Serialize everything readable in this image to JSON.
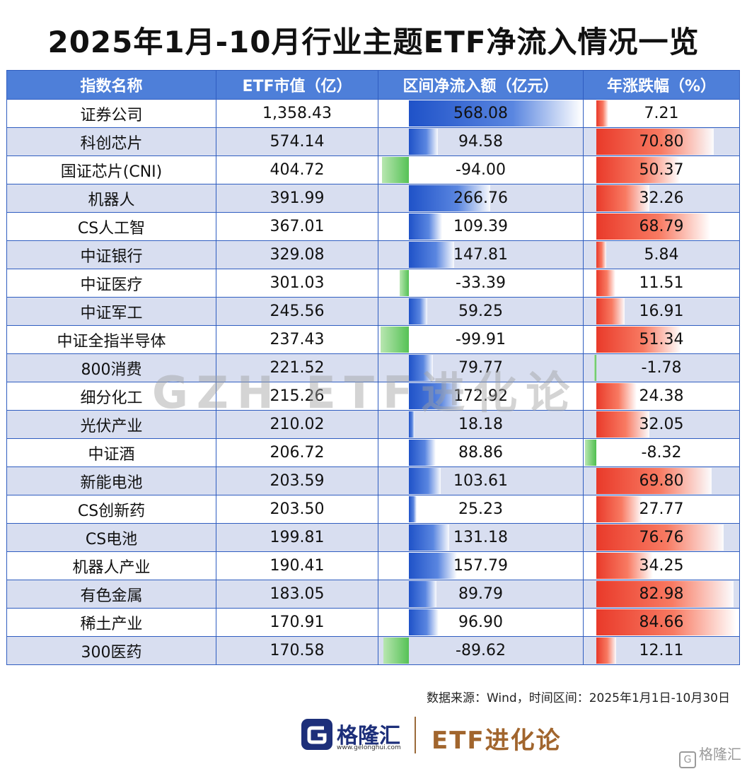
{
  "title": "2025年1月-10月行业主题ETF净流入情况一览",
  "headers": [
    "指数名称",
    "ETF市值（亿）",
    "区间净流入额（亿元）",
    "年涨跌幅（%）"
  ],
  "watermark": "GZH ETF进化论",
  "source": "数据来源：Wind，时间区间：2025年1月1日-10月30日",
  "footer": {
    "logo_name": "格隆汇",
    "logo_url": "www.gelonghui.com",
    "brand": "ETF进化论",
    "corner_mark": "格隆汇"
  },
  "colors": {
    "header_bg": "#4e7fd9",
    "inflow_bar": "#1f52c8",
    "outflow_bar": "#56c256",
    "gain_bar": "#e93a2a",
    "loss_bar": "#4fbf4f",
    "brand_color": "#a1652d"
  },
  "chart_data": {
    "type": "table",
    "title": "2025年1月-10月行业主题ETF净流入情况一览",
    "columns": [
      "指数名称",
      "ETF市值（亿）",
      "区间净流入额（亿元）",
      "年涨跌幅（%）"
    ],
    "rows": [
      {
        "name": "证券公司",
        "market_cap": "1,358.43",
        "net_inflow": 568.08,
        "change": 7.21
      },
      {
        "name": "科创芯片",
        "market_cap": "574.14",
        "net_inflow": 94.58,
        "change": 70.8
      },
      {
        "name": "国证芯片(CNI)",
        "market_cap": "404.72",
        "net_inflow": -94.0,
        "change": 50.37
      },
      {
        "name": "机器人",
        "market_cap": "391.99",
        "net_inflow": 266.76,
        "change": 32.26
      },
      {
        "name": "CS人工智",
        "market_cap": "367.01",
        "net_inflow": 109.39,
        "change": 68.79
      },
      {
        "name": "中证银行",
        "market_cap": "329.08",
        "net_inflow": 147.81,
        "change": 5.84
      },
      {
        "name": "中证医疗",
        "market_cap": "301.03",
        "net_inflow": -33.39,
        "change": 11.51
      },
      {
        "name": "中证军工",
        "market_cap": "245.56",
        "net_inflow": 59.25,
        "change": 16.91
      },
      {
        "name": "中证全指半导体",
        "market_cap": "237.43",
        "net_inflow": -99.91,
        "change": 51.34
      },
      {
        "name": "800消费",
        "market_cap": "221.52",
        "net_inflow": 79.77,
        "change": -1.78
      },
      {
        "name": "细分化工",
        "market_cap": "215.26",
        "net_inflow": 172.92,
        "change": 24.38
      },
      {
        "name": "光伏产业",
        "market_cap": "210.02",
        "net_inflow": 18.18,
        "change": 32.05
      },
      {
        "name": "中证酒",
        "market_cap": "206.72",
        "net_inflow": 88.86,
        "change": -8.32
      },
      {
        "name": "新能电池",
        "market_cap": "203.59",
        "net_inflow": 103.61,
        "change": 69.8
      },
      {
        "name": "CS创新药",
        "market_cap": "203.50",
        "net_inflow": 25.23,
        "change": 27.77
      },
      {
        "name": "CS电池",
        "market_cap": "199.81",
        "net_inflow": 131.18,
        "change": 76.76
      },
      {
        "name": "机器人产业",
        "market_cap": "190.41",
        "net_inflow": 157.79,
        "change": 34.25
      },
      {
        "name": "有色金属",
        "market_cap": "183.05",
        "net_inflow": 89.79,
        "change": 82.98
      },
      {
        "name": "稀土产业",
        "market_cap": "170.91",
        "net_inflow": 96.9,
        "change": 84.66
      },
      {
        "name": "300医药",
        "market_cap": "170.58",
        "net_inflow": -89.62,
        "change": 12.11
      }
    ]
  }
}
